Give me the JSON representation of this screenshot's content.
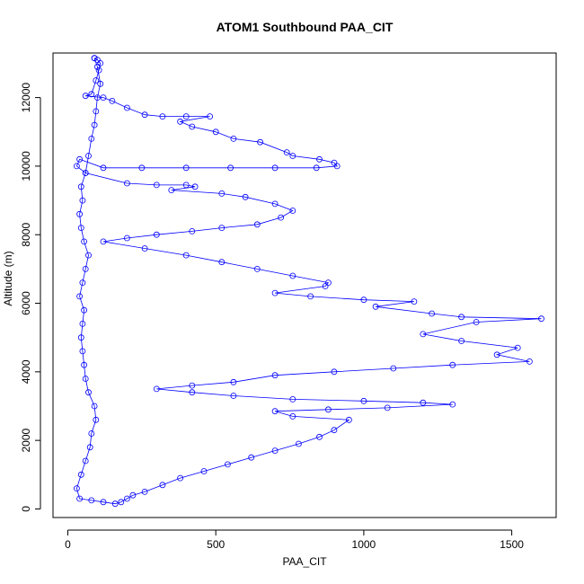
{
  "chart_data": {
    "type": "scatter",
    "title": "ATOM1 Southbound PAA_CIT",
    "xlabel": "PAA_CIT",
    "ylabel": "Altitude (m)",
    "xlim": [
      -50,
      1650
    ],
    "ylim": [
      -250,
      13300
    ],
    "x_ticks": [
      0,
      500,
      1000,
      1500
    ],
    "y_ticks": [
      0,
      2000,
      4000,
      6000,
      8000,
      10000,
      12000
    ],
    "point_style": "open-circle",
    "line_style": "connected",
    "color": "#0000ff",
    "series": [
      {
        "values": [
          [
            90,
            13150
          ],
          [
            100,
            13100
          ],
          [
            110,
            13000
          ],
          [
            105,
            12800
          ],
          [
            95,
            12500
          ],
          [
            80,
            12100
          ],
          [
            60,
            12050
          ],
          [
            120,
            12000
          ],
          [
            150,
            11900
          ],
          [
            200,
            11700
          ],
          [
            260,
            11500
          ],
          [
            320,
            11450
          ],
          [
            400,
            11450
          ],
          [
            480,
            11450
          ],
          [
            380,
            11300
          ],
          [
            420,
            11150
          ],
          [
            500,
            11000
          ],
          [
            560,
            10800
          ],
          [
            650,
            10700
          ],
          [
            740,
            10400
          ],
          [
            760,
            10300
          ],
          [
            850,
            10200
          ],
          [
            900,
            10100
          ],
          [
            910,
            10000
          ],
          [
            840,
            9950
          ],
          [
            700,
            9950
          ],
          [
            550,
            9950
          ],
          [
            400,
            9950
          ],
          [
            250,
            9950
          ],
          [
            120,
            9950
          ],
          [
            40,
            10200
          ],
          [
            30,
            10000
          ],
          [
            60,
            9800
          ],
          [
            200,
            9500
          ],
          [
            300,
            9450
          ],
          [
            400,
            9450
          ],
          [
            430,
            9400
          ],
          [
            350,
            9300
          ],
          [
            520,
            9200
          ],
          [
            600,
            9100
          ],
          [
            700,
            8900
          ],
          [
            760,
            8700
          ],
          [
            720,
            8500
          ],
          [
            640,
            8300
          ],
          [
            520,
            8200
          ],
          [
            420,
            8100
          ],
          [
            300,
            8000
          ],
          [
            200,
            7900
          ],
          [
            120,
            7800
          ],
          [
            260,
            7600
          ],
          [
            400,
            7400
          ],
          [
            520,
            7200
          ],
          [
            640,
            7000
          ],
          [
            760,
            6800
          ],
          [
            880,
            6600
          ],
          [
            870,
            6500
          ],
          [
            700,
            6300
          ],
          [
            820,
            6200
          ],
          [
            1000,
            6100
          ],
          [
            1170,
            6050
          ],
          [
            1040,
            5900
          ],
          [
            1230,
            5700
          ],
          [
            1330,
            5600
          ],
          [
            1600,
            5550
          ],
          [
            1380,
            5450
          ],
          [
            1200,
            5100
          ],
          [
            1330,
            4900
          ],
          [
            1520,
            4700
          ],
          [
            1450,
            4500
          ],
          [
            1560,
            4300
          ],
          [
            1300,
            4200
          ],
          [
            1100,
            4100
          ],
          [
            900,
            4000
          ],
          [
            700,
            3900
          ],
          [
            560,
            3700
          ],
          [
            420,
            3600
          ],
          [
            300,
            3500
          ],
          [
            420,
            3400
          ],
          [
            560,
            3300
          ],
          [
            760,
            3200
          ],
          [
            1000,
            3150
          ],
          [
            1200,
            3100
          ],
          [
            1300,
            3050
          ],
          [
            1080,
            2950
          ],
          [
            880,
            2900
          ],
          [
            700,
            2850
          ],
          [
            760,
            2700
          ],
          [
            950,
            2600
          ],
          [
            900,
            2300
          ],
          [
            850,
            2100
          ],
          [
            780,
            1900
          ],
          [
            700,
            1700
          ],
          [
            620,
            1500
          ],
          [
            540,
            1300
          ],
          [
            460,
            1100
          ],
          [
            380,
            900
          ],
          [
            320,
            700
          ],
          [
            260,
            500
          ],
          [
            220,
            400
          ],
          [
            200,
            300
          ],
          [
            180,
            200
          ],
          [
            160,
            150
          ],
          [
            120,
            200
          ],
          [
            80,
            250
          ],
          [
            40,
            300
          ],
          [
            30,
            600
          ],
          [
            45,
            1000
          ],
          [
            60,
            1400
          ],
          [
            75,
            1800
          ],
          [
            80,
            2200
          ],
          [
            95,
            2600
          ],
          [
            90,
            3000
          ],
          [
            70,
            3400
          ],
          [
            60,
            3800
          ],
          [
            55,
            4200
          ],
          [
            50,
            4600
          ],
          [
            45,
            5000
          ],
          [
            50,
            5400
          ],
          [
            55,
            5800
          ],
          [
            40,
            6200
          ],
          [
            50,
            6600
          ],
          [
            60,
            7000
          ],
          [
            70,
            7400
          ],
          [
            55,
            7800
          ],
          [
            45,
            8200
          ],
          [
            40,
            8600
          ],
          [
            50,
            9000
          ],
          [
            45,
            9400
          ],
          [
            60,
            9800
          ],
          [
            70,
            10300
          ],
          [
            80,
            10800
          ],
          [
            90,
            11200
          ],
          [
            95,
            11600
          ],
          [
            100,
            12000
          ],
          [
            110,
            12400
          ],
          [
            100,
            12900
          ],
          [
            90,
            13150
          ]
        ]
      }
    ]
  }
}
